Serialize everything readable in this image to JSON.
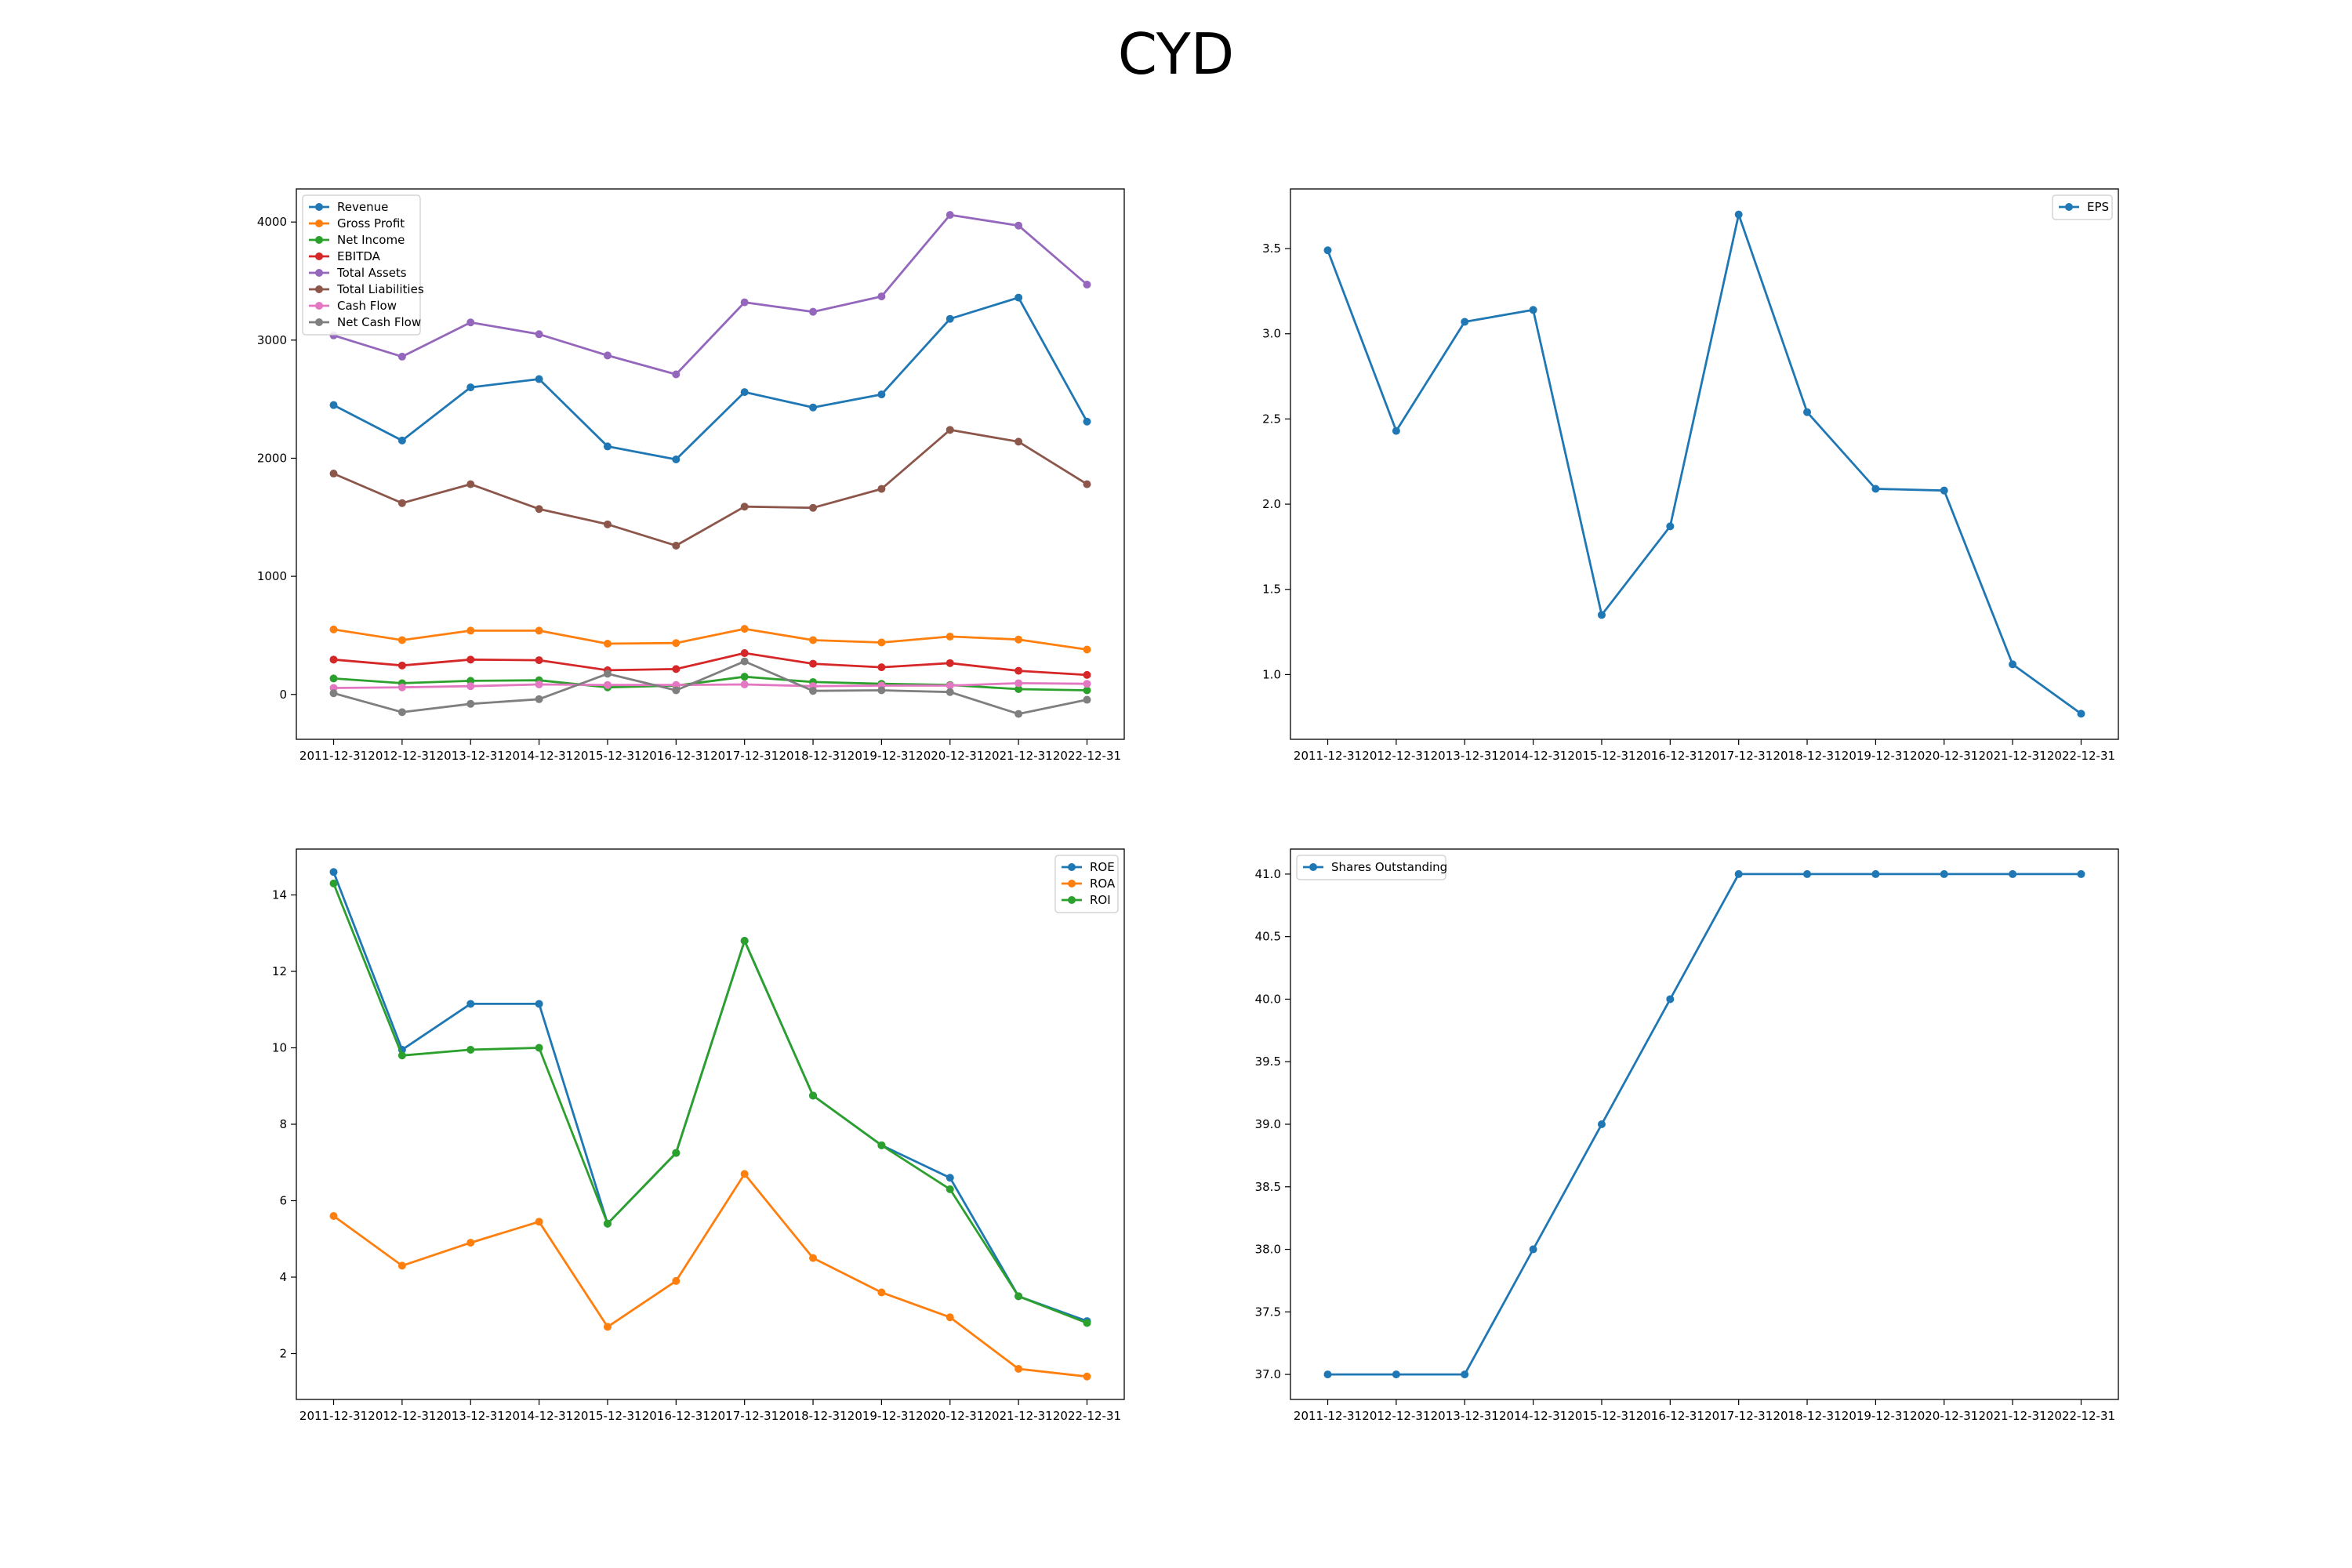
{
  "figure": {
    "title": "CYD"
  },
  "chart_data": [
    {
      "type": "line",
      "title": "",
      "xlabel": "",
      "ylabel": "",
      "categories": [
        "2011-12-31",
        "2012-12-31",
        "2013-12-31",
        "2014-12-31",
        "2015-12-31",
        "2016-12-31",
        "2017-12-31",
        "2018-12-31",
        "2019-12-31",
        "2020-12-31",
        "2021-12-31",
        "2022-12-31"
      ],
      "ylim": [
        -380,
        4280
      ],
      "yticks": [
        0,
        1000,
        2000,
        3000,
        4000
      ],
      "legend": "upper-left",
      "series": [
        {
          "name": "Revenue",
          "color": "#1f77b4",
          "values": [
            2450,
            2150,
            2600,
            2670,
            2100,
            1990,
            2560,
            2430,
            2540,
            3180,
            3360,
            2310
          ]
        },
        {
          "name": "Gross Profit",
          "color": "#ff7f0e",
          "values": [
            550,
            460,
            540,
            540,
            430,
            435,
            555,
            460,
            440,
            490,
            465,
            380
          ]
        },
        {
          "name": "Net Income",
          "color": "#2ca02c",
          "values": [
            135,
            95,
            115,
            120,
            60,
            75,
            150,
            105,
            90,
            80,
            45,
            35
          ]
        },
        {
          "name": "EBITDA",
          "color": "#d62728",
          "values": [
            295,
            245,
            295,
            290,
            205,
            215,
            350,
            260,
            230,
            265,
            200,
            165
          ]
        },
        {
          "name": "Total Assets",
          "color": "#9467bd",
          "values": [
            3040,
            2860,
            3150,
            3050,
            2870,
            2710,
            3320,
            3240,
            3370,
            4060,
            3970,
            3470
          ]
        },
        {
          "name": "Total Liabilities",
          "color": "#8c564b",
          "values": [
            1870,
            1620,
            1780,
            1570,
            1440,
            1260,
            1590,
            1580,
            1740,
            2240,
            2140,
            1780
          ]
        },
        {
          "name": "Cash Flow",
          "color": "#e377c2",
          "values": [
            55,
            60,
            70,
            85,
            80,
            80,
            85,
            70,
            75,
            75,
            95,
            90
          ]
        },
        {
          "name": "Net Cash Flow",
          "color": "#7f7f7f",
          "values": [
            10,
            -150,
            -80,
            -40,
            175,
            35,
            280,
            30,
            35,
            20,
            -165,
            -45
          ]
        }
      ]
    },
    {
      "type": "line",
      "title": "",
      "xlabel": "",
      "ylabel": "",
      "categories": [
        "2011-12-31",
        "2012-12-31",
        "2013-12-31",
        "2014-12-31",
        "2015-12-31",
        "2016-12-31",
        "2017-12-31",
        "2018-12-31",
        "2019-12-31",
        "2020-12-31",
        "2021-12-31",
        "2022-12-31"
      ],
      "ylim": [
        0.62,
        3.85
      ],
      "yticks": [
        1.0,
        1.5,
        2.0,
        2.5,
        3.0,
        3.5
      ],
      "legend": "upper-right",
      "series": [
        {
          "name": "EPS",
          "color": "#1f77b4",
          "values": [
            3.49,
            2.43,
            3.07,
            3.14,
            1.35,
            1.87,
            3.7,
            2.54,
            2.09,
            2.08,
            1.06,
            0.77
          ]
        }
      ]
    },
    {
      "type": "line",
      "title": "",
      "xlabel": "",
      "ylabel": "",
      "categories": [
        "2011-12-31",
        "2012-12-31",
        "2013-12-31",
        "2014-12-31",
        "2015-12-31",
        "2016-12-31",
        "2017-12-31",
        "2018-12-31",
        "2019-12-31",
        "2020-12-31",
        "2021-12-31",
        "2022-12-31"
      ],
      "ylim": [
        0.8,
        15.2
      ],
      "yticks": [
        2,
        4,
        6,
        8,
        10,
        12,
        14
      ],
      "legend": "upper-right",
      "series": [
        {
          "name": "ROE",
          "color": "#1f77b4",
          "values": [
            14.6,
            9.95,
            11.15,
            11.15,
            5.4,
            7.25,
            12.8,
            8.75,
            7.45,
            6.6,
            3.5,
            2.85
          ]
        },
        {
          "name": "ROA",
          "color": "#ff7f0e",
          "values": [
            5.6,
            4.3,
            4.9,
            5.45,
            2.7,
            3.9,
            6.7,
            4.5,
            3.6,
            2.95,
            1.6,
            1.4
          ]
        },
        {
          "name": "ROI",
          "color": "#2ca02c",
          "values": [
            14.3,
            9.8,
            9.95,
            10.0,
            5.4,
            7.25,
            12.8,
            8.75,
            7.45,
            6.3,
            3.5,
            2.8
          ]
        }
      ]
    },
    {
      "type": "line",
      "title": "",
      "xlabel": "",
      "ylabel": "",
      "categories": [
        "2011-12-31",
        "2012-12-31",
        "2013-12-31",
        "2014-12-31",
        "2015-12-31",
        "2016-12-31",
        "2017-12-31",
        "2018-12-31",
        "2019-12-31",
        "2020-12-31",
        "2021-12-31",
        "2022-12-31"
      ],
      "ylim": [
        36.8,
        41.2
      ],
      "yticks": [
        37.0,
        37.5,
        38.0,
        38.5,
        39.0,
        39.5,
        40.0,
        40.5,
        41.0
      ],
      "legend": "upper-left",
      "series": [
        {
          "name": "Shares Outstanding",
          "color": "#1f77b4",
          "values": [
            37,
            37,
            37,
            38,
            39,
            40,
            41,
            41,
            41,
            41,
            41,
            41
          ]
        }
      ]
    }
  ]
}
